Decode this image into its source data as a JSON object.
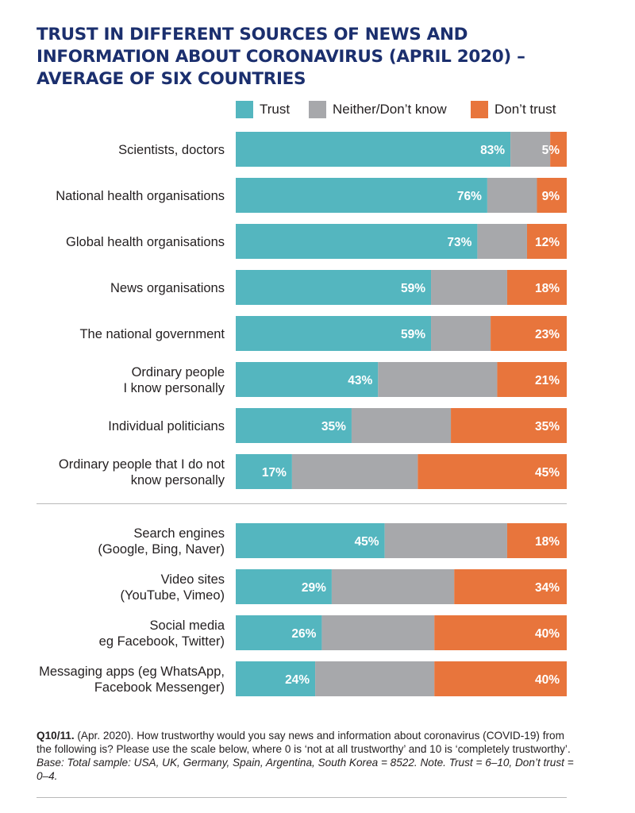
{
  "title": "TRUST IN DIFFERENT SOURCES OF NEWS AND INFORMATION ABOUT CORONAVIRUS (APRIL 2020) – AVERAGE OF SIX COUNTRIES",
  "colors": {
    "trust": "#54b6bf",
    "neither": "#a7a8ab",
    "dont_trust": "#e8753c",
    "title": "#1b2f6e"
  },
  "legend": [
    {
      "key": "trust",
      "label": "Trust"
    },
    {
      "key": "neither",
      "label": "Neither/Don’t know"
    },
    {
      "key": "dont_trust",
      "label": "Don’t trust"
    }
  ],
  "chart_data": {
    "type": "bar",
    "stacked": true,
    "orientation": "horizontal",
    "xlim": [
      0,
      100
    ],
    "legend_position": "top",
    "categories": [
      "Scientists, doctors",
      "National health organisations",
      "Global health organisations",
      "News organisations",
      "The national government",
      "Ordinary people\nI know personally",
      "Individual politicians",
      "Ordinary people that I do not\nknow personally",
      "Search engines\n(Google, Bing, Naver)",
      "Video sites\n(YouTube, Vimeo)",
      "Social media\neg Facebook, Twitter)",
      "Messaging apps (eg WhatsApp,\nFacebook Messenger)"
    ],
    "groups": [
      8,
      4
    ],
    "series": [
      {
        "name": "Trust",
        "values": [
          83,
          76,
          73,
          59,
          59,
          43,
          35,
          17,
          45,
          29,
          26,
          24
        ]
      },
      {
        "name": "Neither/Don’t know",
        "values": [
          12,
          15,
          15,
          23,
          18,
          36,
          30,
          38,
          37,
          37,
          34,
          36
        ]
      },
      {
        "name": "Don’t trust",
        "values": [
          5,
          9,
          12,
          18,
          23,
          21,
          35,
          45,
          18,
          34,
          40,
          40
        ]
      }
    ],
    "value_labels": {
      "Trust": [
        "83%",
        "76%",
        "73%",
        "59%",
        "59%",
        "43%",
        "35%",
        "17%",
        "45%",
        "29%",
        "26%",
        "24%"
      ],
      "Don’t trust": [
        "5%",
        "9%",
        "12%",
        "18%",
        "23%",
        "21%",
        "35%",
        "45%",
        "18%",
        "34%",
        "40%",
        "40%"
      ]
    }
  },
  "footnote": {
    "q_label": "Q10/11.",
    "text": " (Apr. 2020). How trustworthy would you say news and information about coronavirus (COVID-19) from the following is? Please use the scale below, where 0 is ‘not at all trustworthy’ and 10 is ‘completely trustworthy’. ",
    "base": "Base: Total sample: USA, UK, Germany, Spain, Argentina, South Korea = 8522. Note. Trust = 6–10, Don’t trust = 0–4."
  }
}
